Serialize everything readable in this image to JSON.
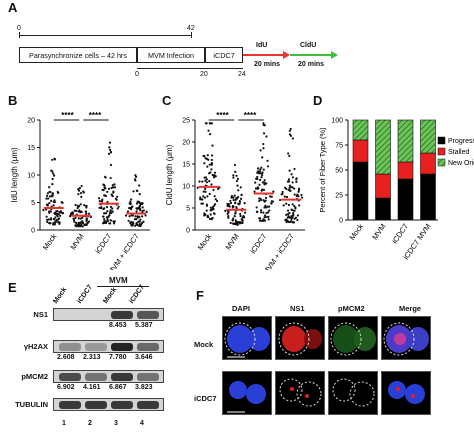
{
  "panels": {
    "A": "A",
    "B": "B",
    "C": "C",
    "D": "D",
    "E": "E",
    "F": "F"
  },
  "timeline": {
    "box1": "Parasynchronize cells – 42 hrs",
    "box2": "MVM Infection",
    "box3": "iCDC7",
    "top_start": "0",
    "top_end": "42",
    "bot_start": "0",
    "bot_mid": "20",
    "bot_end": "24",
    "idu": "IdU",
    "idu_time": "20 mins",
    "cldu": "CldU",
    "cldu_time": "20 mins",
    "colors": {
      "idu": "#e8322f",
      "cldu": "#3fbf3c"
    }
  },
  "panel_b": {
    "chart_data": {
      "type": "scatter",
      "ylabel": "IdU length (μm)",
      "ylim": [
        0,
        20
      ],
      "yticks": [
        "0",
        "5",
        "10",
        "15",
        "20"
      ],
      "categories": [
        "Mock",
        "MVM",
        "iCDC7",
        "MVM + iCDC7"
      ],
      "medians": [
        4.0,
        2.6,
        4.8,
        3.0
      ],
      "significance": [
        "****",
        "****"
      ]
    }
  },
  "panel_c": {
    "chart_data": {
      "type": "scatter",
      "ylabel": "CldU length (μm)",
      "ylim": [
        0,
        25
      ],
      "yticks": [
        "0",
        "5",
        "10",
        "15",
        "20",
        "25"
      ],
      "categories": [
        "Mock",
        "MVM",
        "iCDC7",
        "MVM + iCDC7"
      ],
      "medians": [
        9.8,
        4.6,
        8.3,
        6.9
      ],
      "significance": [
        "****",
        "****"
      ]
    }
  },
  "panel_d": {
    "chart_data": {
      "type": "bar",
      "ylabel": "Percent of Fiber Type (%)",
      "ylim": [
        0,
        100
      ],
      "yticks": [
        "0",
        "25",
        "50",
        "75",
        "100"
      ],
      "categories": [
        "Mock",
        "MVM",
        "iCDC7",
        "iCDC7 MVM"
      ],
      "series": [
        {
          "name": "Progressing",
          "color": "#000000",
          "values": [
            58,
            22,
            41,
            46
          ]
        },
        {
          "name": "Stalled",
          "color": "#e8201f",
          "values": [
            22,
            24,
            17,
            21
          ]
        },
        {
          "name": "New Origin",
          "color": "#6cc45a",
          "values": [
            20,
            54,
            42,
            33
          ]
        }
      ]
    }
  },
  "panel_e": {
    "header": "MVM",
    "lanes": [
      "Mock",
      "iCDC7",
      "Mock",
      "iCDC7"
    ],
    "lane_numbers": [
      "1",
      "2",
      "3",
      "4"
    ],
    "rows": [
      {
        "label": "NS1",
        "quant": [
          "",
          "",
          "8.453",
          "5.387"
        ],
        "bands": [
          0,
          0,
          0.8,
          0.65
        ]
      },
      {
        "label": "γH2AX",
        "quant": [
          "2.608",
          "2.313",
          "7.780",
          "3.646"
        ],
        "bands": [
          0.35,
          0.3,
          0.9,
          0.55
        ]
      },
      {
        "label": "pMCM2",
        "quant": [
          "6.902",
          "4.161",
          "6.867",
          "3.823"
        ],
        "bands": [
          0.7,
          0.5,
          0.8,
          0.5
        ]
      },
      {
        "label": "TUBULIN",
        "quant": [
          "",
          "",
          "",
          ""
        ],
        "bands": [
          0.8,
          0.8,
          0.8,
          0.8
        ]
      }
    ]
  },
  "panel_f": {
    "columns": [
      "DAPI",
      "NS1",
      "pMCM2",
      "Merge"
    ],
    "rows": [
      "Mock",
      "iCDC7"
    ]
  }
}
